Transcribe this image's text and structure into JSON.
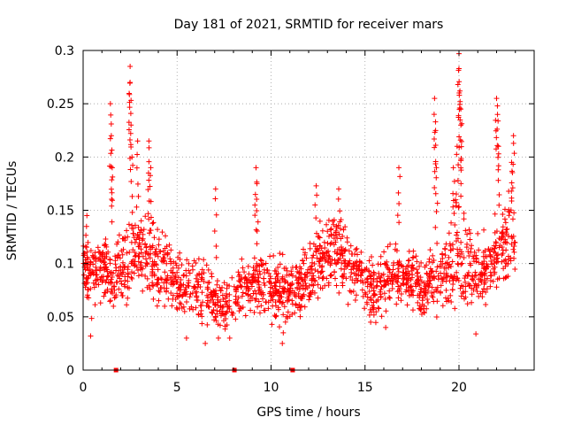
{
  "chart_data": {
    "type": "scatter",
    "title": "Day 181 of 2021, SRMTID for receiver mars",
    "xlabel": "GPS time / hours",
    "ylabel": "SRMTID / TECUs",
    "xlim": [
      0,
      24
    ],
    "ylim": [
      0,
      0.3
    ],
    "x_ticks": [
      0,
      5,
      10,
      15,
      20
    ],
    "y_ticks": [
      0,
      0.05,
      0.1,
      0.15,
      0.2,
      0.25,
      0.3
    ],
    "x_tick_labels": [
      "0",
      "5",
      "10",
      "15",
      "20"
    ],
    "y_tick_labels": [
      "0",
      "0.05",
      "0.1",
      "0.15",
      "0.2",
      "0.25",
      "0.3"
    ],
    "grid": true,
    "marker": "+",
    "color": "#ff0000",
    "gap_markers_x": [
      1.75,
      8.05,
      11.15
    ],
    "envelope": {
      "x": [
        0,
        0.5,
        1,
        1.5,
        2,
        2.5,
        3,
        3.5,
        4,
        4.5,
        5,
        5.5,
        6,
        6.5,
        7,
        7.5,
        8,
        8.5,
        9,
        9.5,
        10,
        10.5,
        11,
        11.5,
        12,
        12.5,
        13,
        13.5,
        14,
        14.5,
        15,
        15.5,
        16,
        16.5,
        17,
        17.5,
        18,
        18.5,
        19,
        19.5,
        20,
        20.5,
        21,
        21.5,
        22,
        22.5,
        23
      ],
      "median": [
        0.1,
        0.09,
        0.1,
        0.085,
        0.09,
        0.11,
        0.11,
        0.11,
        0.1,
        0.095,
        0.08,
        0.08,
        0.075,
        0.07,
        0.065,
        0.06,
        0.065,
        0.08,
        0.085,
        0.08,
        0.075,
        0.075,
        0.07,
        0.075,
        0.085,
        0.1,
        0.11,
        0.11,
        0.105,
        0.095,
        0.08,
        0.075,
        0.085,
        0.09,
        0.085,
        0.09,
        0.08,
        0.085,
        0.09,
        0.1,
        0.11,
        0.095,
        0.09,
        0.095,
        0.11,
        0.12,
        0.12
      ],
      "spread": [
        0.03,
        0.035,
        0.03,
        0.03,
        0.035,
        0.04,
        0.04,
        0.04,
        0.035,
        0.03,
        0.03,
        0.03,
        0.03,
        0.03,
        0.025,
        0.025,
        0.025,
        0.03,
        0.03,
        0.03,
        0.03,
        0.03,
        0.03,
        0.03,
        0.03,
        0.035,
        0.035,
        0.035,
        0.03,
        0.03,
        0.03,
        0.03,
        0.03,
        0.03,
        0.03,
        0.03,
        0.03,
        0.035,
        0.04,
        0.04,
        0.045,
        0.04,
        0.035,
        0.035,
        0.04,
        0.04,
        0.04
      ]
    },
    "peaks": [
      {
        "x": 0.2,
        "y": 0.145
      },
      {
        "x": 1.45,
        "y": 0.25
      },
      {
        "x": 1.5,
        "y": 0.22
      },
      {
        "x": 1.55,
        "y": 0.19
      },
      {
        "x": 2.5,
        "y": 0.285
      },
      {
        "x": 2.5,
        "y": 0.27
      },
      {
        "x": 2.55,
        "y": 0.23
      },
      {
        "x": 2.6,
        "y": 0.2
      },
      {
        "x": 2.9,
        "y": 0.215
      },
      {
        "x": 3.5,
        "y": 0.215
      },
      {
        "x": 3.6,
        "y": 0.19
      },
      {
        "x": 7.05,
        "y": 0.17
      },
      {
        "x": 9.2,
        "y": 0.19
      },
      {
        "x": 9.25,
        "y": 0.175
      },
      {
        "x": 12.4,
        "y": 0.173
      },
      {
        "x": 13.6,
        "y": 0.17
      },
      {
        "x": 16.8,
        "y": 0.19
      },
      {
        "x": 18.7,
        "y": 0.255
      },
      {
        "x": 18.75,
        "y": 0.233
      },
      {
        "x": 18.8,
        "y": 0.19
      },
      {
        "x": 20.0,
        "y": 0.297
      },
      {
        "x": 20.0,
        "y": 0.283
      },
      {
        "x": 20.05,
        "y": 0.262
      },
      {
        "x": 20.1,
        "y": 0.245
      },
      {
        "x": 20.1,
        "y": 0.23
      },
      {
        "x": 19.9,
        "y": 0.21
      },
      {
        "x": 19.7,
        "y": 0.19
      },
      {
        "x": 22.0,
        "y": 0.255
      },
      {
        "x": 22.05,
        "y": 0.24
      },
      {
        "x": 22.1,
        "y": 0.21
      },
      {
        "x": 22.9,
        "y": 0.22
      },
      {
        "x": 22.8,
        "y": 0.195
      }
    ],
    "lows": [
      {
        "x": 5.5,
        "y": 0.03
      },
      {
        "x": 6.5,
        "y": 0.025
      },
      {
        "x": 7.2,
        "y": 0.03
      },
      {
        "x": 7.8,
        "y": 0.03
      },
      {
        "x": 10.6,
        "y": 0.025
      },
      {
        "x": 10.65,
        "y": 0.035
      },
      {
        "x": 0.4,
        "y": 0.032
      },
      {
        "x": 20.9,
        "y": 0.034
      },
      {
        "x": 16.1,
        "y": 0.04
      },
      {
        "x": 15.3,
        "y": 0.045
      }
    ]
  }
}
